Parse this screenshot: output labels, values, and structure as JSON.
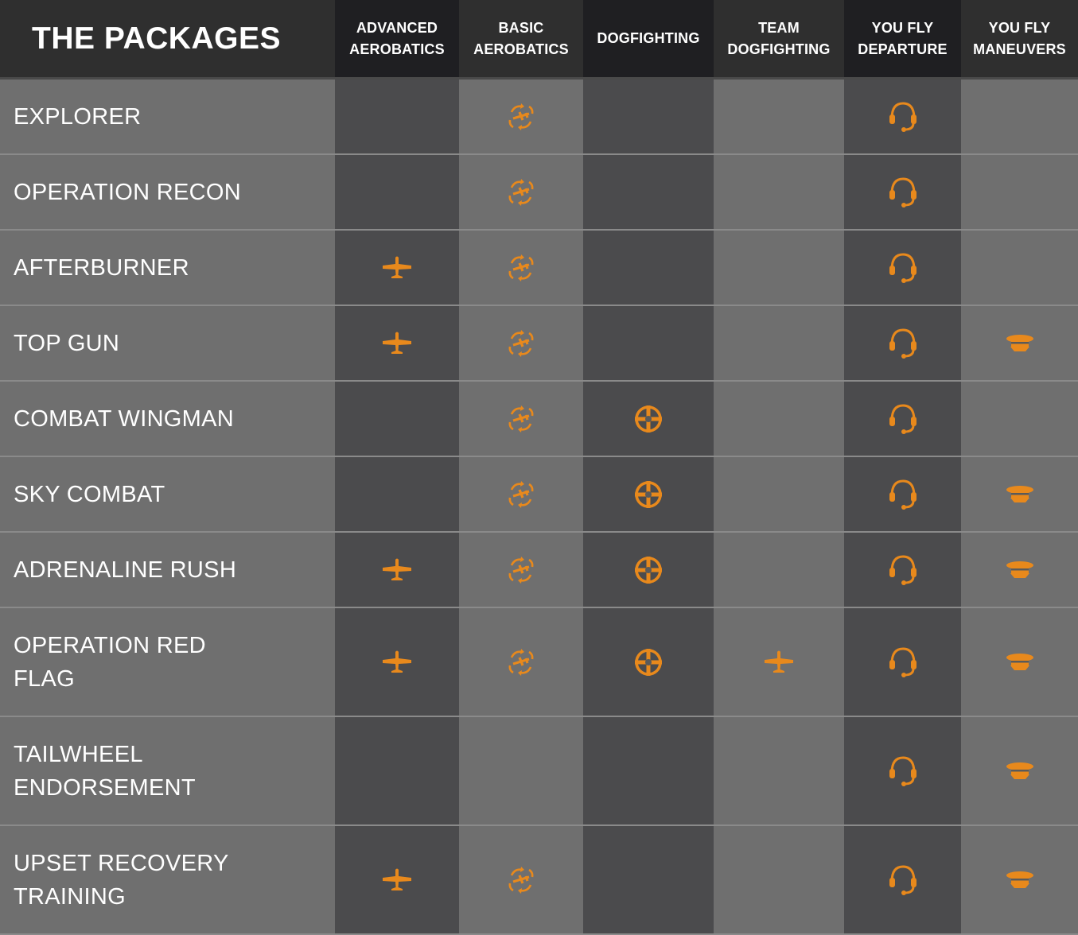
{
  "title": "THE PACKAGES",
  "accent_color": "#e8891c",
  "columns": [
    {
      "line1": "ADVANCED",
      "line2": "AEROBATICS",
      "icon": "airplane-icon"
    },
    {
      "line1": "BASIC",
      "line2": "AEROBATICS",
      "icon": "aerobatics-icon"
    },
    {
      "line1": "DOGFIGHTING",
      "line2": "",
      "icon": "crosshair-icon"
    },
    {
      "line1": "TEAM",
      "line2": "DOGFIGHTING",
      "icon": "airplane-icon"
    },
    {
      "line1": "YOU FLY",
      "line2": "DEPARTURE",
      "icon": "headset-icon"
    },
    {
      "line1": "YOU FLY",
      "line2": "MANEUVERS",
      "icon": "pilot-cap-icon"
    }
  ],
  "packages": [
    {
      "name": [
        "EXPLORER"
      ],
      "includes": [
        false,
        true,
        false,
        false,
        true,
        false
      ]
    },
    {
      "name": [
        "OPERATION RECON"
      ],
      "includes": [
        false,
        true,
        false,
        false,
        true,
        false
      ]
    },
    {
      "name": [
        "AFTERBURNER"
      ],
      "includes": [
        true,
        true,
        false,
        false,
        true,
        false
      ]
    },
    {
      "name": [
        "TOP GUN"
      ],
      "includes": [
        true,
        true,
        false,
        false,
        true,
        true
      ]
    },
    {
      "name": [
        "COMBAT WINGMAN"
      ],
      "includes": [
        false,
        true,
        true,
        false,
        true,
        false
      ]
    },
    {
      "name": [
        "SKY COMBAT"
      ],
      "includes": [
        false,
        true,
        true,
        false,
        true,
        true
      ]
    },
    {
      "name": [
        "ADRENALINE RUSH"
      ],
      "includes": [
        true,
        true,
        true,
        false,
        true,
        true
      ]
    },
    {
      "name": [
        "OPERATION RED",
        "FLAG"
      ],
      "includes": [
        true,
        true,
        true,
        true,
        true,
        true
      ]
    },
    {
      "name": [
        "TAILWHEEL",
        "ENDORSEMENT"
      ],
      "includes": [
        false,
        false,
        false,
        false,
        true,
        true
      ]
    },
    {
      "name": [
        "UPSET RECOVERY",
        "TRAINING"
      ],
      "includes": [
        true,
        true,
        false,
        false,
        true,
        true
      ]
    }
  ]
}
